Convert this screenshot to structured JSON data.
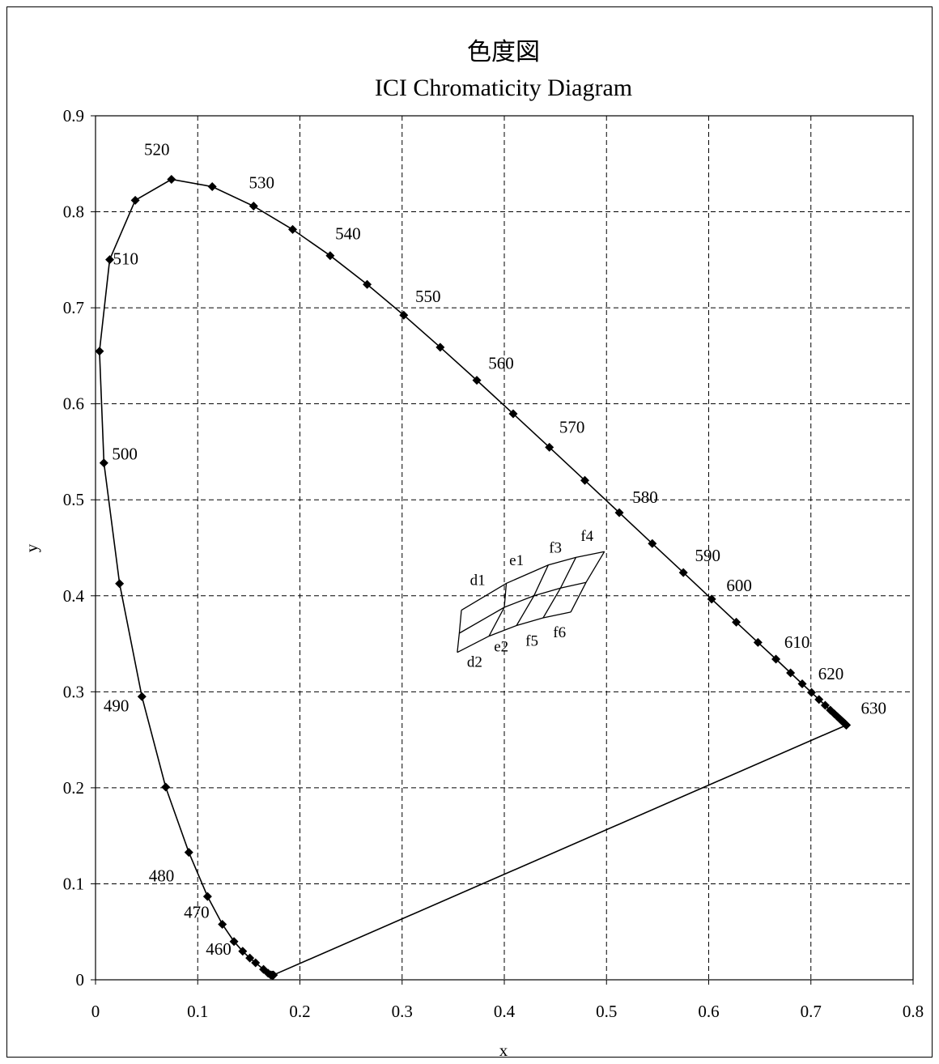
{
  "chart_data": {
    "type": "scatter",
    "title": "色度図",
    "subtitle": "ICI Chromaticity Diagram",
    "xlabel": "x",
    "ylabel": "y",
    "xlim": [
      0,
      0.8
    ],
    "ylim": [
      0,
      0.9
    ],
    "xticks": [
      0,
      0.1,
      0.2,
      0.3,
      0.4,
      0.5,
      0.6,
      0.7,
      0.8
    ],
    "yticks": [
      0,
      0.1,
      0.2,
      0.3,
      0.4,
      0.5,
      0.6,
      0.7,
      0.8,
      0.9
    ],
    "xtick_labels": [
      "0",
      "0.1",
      "0.2",
      "0.3",
      "0.4",
      "0.5",
      "0.6",
      "0.7",
      "0.8"
    ],
    "ytick_labels": [
      "0",
      "0.1",
      "0.2",
      "0.3",
      "0.4",
      "0.5",
      "0.6",
      "0.7",
      "0.8",
      "0.9"
    ],
    "grid": true,
    "series": [
      {
        "points": [
          [
            0.1741,
            0.005
          ],
          [
            0.1738,
            0.0049
          ],
          [
            0.1733,
            0.0048
          ],
          [
            0.1726,
            0.0048
          ],
          [
            0.1714,
            0.0051
          ],
          [
            0.1689,
            0.0069
          ],
          [
            0.1644,
            0.0109
          ],
          [
            0.1566,
            0.0177
          ],
          [
            0.151,
            0.0227
          ],
          [
            0.144,
            0.0297
          ],
          [
            0.1355,
            0.0399
          ],
          [
            0.1241,
            0.0578
          ],
          [
            0.1096,
            0.0868
          ],
          [
            0.0913,
            0.1327
          ],
          [
            0.0687,
            0.2007
          ],
          [
            0.0454,
            0.295
          ],
          [
            0.0235,
            0.4127
          ],
          [
            0.0082,
            0.5384
          ],
          [
            0.0039,
            0.6548
          ],
          [
            0.0139,
            0.7502
          ],
          [
            0.0389,
            0.812
          ],
          [
            0.0743,
            0.8338
          ],
          [
            0.1142,
            0.8262
          ],
          [
            0.1547,
            0.8059
          ],
          [
            0.1929,
            0.7816
          ],
          [
            0.2296,
            0.7543
          ],
          [
            0.2658,
            0.7243
          ],
          [
            0.3016,
            0.6923
          ],
          [
            0.3373,
            0.6589
          ],
          [
            0.3731,
            0.6245
          ],
          [
            0.4087,
            0.5896
          ],
          [
            0.4441,
            0.5547
          ],
          [
            0.4788,
            0.5202
          ],
          [
            0.5125,
            0.4866
          ],
          [
            0.5448,
            0.4544
          ],
          [
            0.5752,
            0.4242
          ],
          [
            0.6029,
            0.3965
          ],
          [
            0.627,
            0.3725
          ],
          [
            0.6482,
            0.3514
          ],
          [
            0.6658,
            0.334
          ],
          [
            0.6801,
            0.3197
          ],
          [
            0.6915,
            0.3083
          ],
          [
            0.7006,
            0.2993
          ],
          [
            0.7079,
            0.292
          ],
          [
            0.714,
            0.2859
          ],
          [
            0.719,
            0.2809
          ],
          [
            0.723,
            0.277
          ],
          [
            0.726,
            0.274
          ],
          [
            0.7283,
            0.2717
          ],
          [
            0.73,
            0.27
          ],
          [
            0.7311,
            0.2689
          ],
          [
            0.732,
            0.268
          ],
          [
            0.7327,
            0.2673
          ],
          [
            0.7334,
            0.2666
          ],
          [
            0.734,
            0.266
          ],
          [
            0.7344,
            0.2656
          ],
          [
            0.7346,
            0.2654
          ],
          [
            0.7347,
            0.2653
          ]
        ],
        "closing_line": [
          [
            0.7347,
            0.2653
          ],
          [
            0.1741,
            0.005
          ]
        ]
      }
    ],
    "wavelength_labels": [
      {
        "text": "460",
        "x": 0.144,
        "y": 0.0297
      },
      {
        "text": "470",
        "x": 0.1241,
        "y": 0.0578
      },
      {
        "text": "480",
        "x": 0.0913,
        "y": 0.1327
      },
      {
        "text": "490",
        "x": 0.0454,
        "y": 0.295
      },
      {
        "text": "500",
        "x": 0.0082,
        "y": 0.5384
      },
      {
        "text": "510",
        "x": 0.0139,
        "y": 0.7502
      },
      {
        "text": "520",
        "x": 0.0743,
        "y": 0.8338
      },
      {
        "text": "530",
        "x": 0.1547,
        "y": 0.8059
      },
      {
        "text": "540",
        "x": 0.2296,
        "y": 0.7543
      },
      {
        "text": "550",
        "x": 0.3016,
        "y": 0.6923
      },
      {
        "text": "560",
        "x": 0.3731,
        "y": 0.6245
      },
      {
        "text": "570",
        "x": 0.4441,
        "y": 0.5547
      },
      {
        "text": "580",
        "x": 0.5125,
        "y": 0.4866
      },
      {
        "text": "590",
        "x": 0.5752,
        "y": 0.4242
      },
      {
        "text": "600",
        "x": 0.6029,
        "y": 0.3965
      },
      {
        "text": "610",
        "x": 0.6658,
        "y": 0.334
      },
      {
        "text": "620",
        "x": 0.7006,
        "y": 0.2993
      },
      {
        "text": "630",
        "x": 0.7347,
        "y": 0.2653
      }
    ],
    "grid_region": {
      "rows": [
        [
          [
            0.358,
            0.385
          ],
          [
            0.402,
            0.413
          ],
          [
            0.443,
            0.432
          ],
          [
            0.47,
            0.44
          ],
          [
            0.498,
            0.446
          ]
        ],
        [
          [
            0.356,
            0.361
          ],
          [
            0.4,
            0.388
          ],
          [
            0.429,
            0.4
          ],
          [
            0.455,
            0.408
          ],
          [
            0.48,
            0.414
          ]
        ],
        [
          [
            0.354,
            0.341
          ],
          [
            0.385,
            0.358
          ],
          [
            0.412,
            0.369
          ],
          [
            0.438,
            0.377
          ],
          [
            0.465,
            0.383
          ]
        ]
      ],
      "labels": [
        {
          "text": "d1",
          "x": 0.374,
          "y": 0.411
        },
        {
          "text": "e1",
          "x": 0.412,
          "y": 0.432
        },
        {
          "text": "f3",
          "x": 0.45,
          "y": 0.445
        },
        {
          "text": "f4",
          "x": 0.481,
          "y": 0.457
        },
        {
          "text": "d2",
          "x": 0.371,
          "y": 0.326
        },
        {
          "text": "e2",
          "x": 0.397,
          "y": 0.342
        },
        {
          "text": "f5",
          "x": 0.427,
          "y": 0.348
        },
        {
          "text": "f6",
          "x": 0.454,
          "y": 0.357
        }
      ]
    }
  }
}
